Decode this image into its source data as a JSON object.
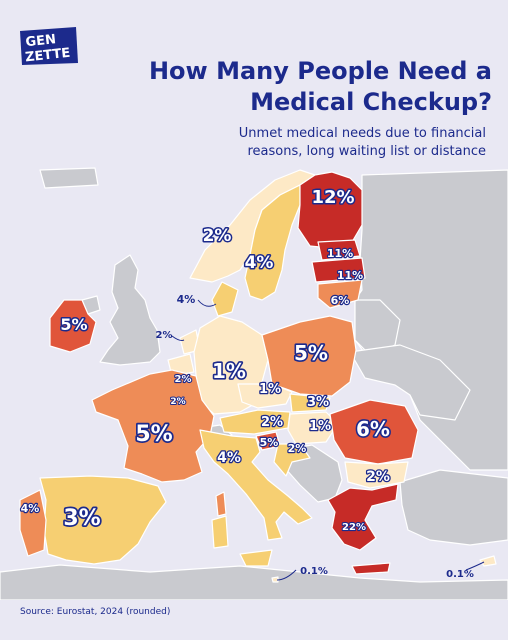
{
  "brand": {
    "line1": "GEN",
    "line2": "ZETTE"
  },
  "header": {
    "title_line1": "How Many People Need a",
    "title_line2": "Medical Checkup?",
    "subtitle_line1": "Unmet medical needs due to financial",
    "subtitle_line2": "reasons, long waiting list or distance"
  },
  "colors": {
    "navy": "#1c2a8c",
    "background": "#e9e8f3",
    "no_data": "#c9cacf",
    "level_lowest": "#fde9c6",
    "level_low": "#f6cf72",
    "level_mid": "#ee8c57",
    "level_high": "#e0553a",
    "level_highest": "#c62b27"
  },
  "regions": [
    {
      "name": "Finland",
      "label": "12%",
      "value": 12
    },
    {
      "name": "Estonia",
      "label": "11%",
      "value": 11
    },
    {
      "name": "Latvia",
      "label": "11%",
      "value": 11
    },
    {
      "name": "Lithuania",
      "label": "6%",
      "value": 6
    },
    {
      "name": "Norway",
      "label": "2%",
      "value": 2
    },
    {
      "name": "Sweden",
      "label": "4%",
      "value": 4
    },
    {
      "name": "Denmark",
      "label": "4%",
      "value": 4
    },
    {
      "name": "Ireland",
      "label": "5%",
      "value": 5
    },
    {
      "name": "Netherlands",
      "label": "2%",
      "value": 2
    },
    {
      "name": "Belgium",
      "label": "2%",
      "value": 2
    },
    {
      "name": "Luxembourg",
      "label": "2%",
      "value": 2
    },
    {
      "name": "Germany",
      "label": "1%",
      "value": 1
    },
    {
      "name": "Poland",
      "label": "5%",
      "value": 5
    },
    {
      "name": "Czechia",
      "label": "1%",
      "value": 1
    },
    {
      "name": "Slovakia",
      "label": "3%",
      "value": 3
    },
    {
      "name": "Austria",
      "label": "2%",
      "value": 2
    },
    {
      "name": "Hungary",
      "label": "1%",
      "value": 1
    },
    {
      "name": "Slovenia",
      "label": "5%",
      "value": 5
    },
    {
      "name": "Croatia",
      "label": "2%",
      "value": 2
    },
    {
      "name": "Romania",
      "label": "6%",
      "value": 6
    },
    {
      "name": "Bulgaria",
      "label": "2%",
      "value": 2
    },
    {
      "name": "Greece",
      "label": "22%",
      "value": 22
    },
    {
      "name": "France",
      "label": "5%",
      "value": 5
    },
    {
      "name": "Italy",
      "label": "4%",
      "value": 4
    },
    {
      "name": "Spain",
      "label": "3%",
      "value": 3
    },
    {
      "name": "Portugal",
      "label": "4%",
      "value": 4
    },
    {
      "name": "Malta",
      "label": "0.1%",
      "value": 0.1
    },
    {
      "name": "Cyprus",
      "label": "0.1%",
      "value": 0.1
    }
  ],
  "footer": {
    "source": "Source: Eurostat, 2024 (rounded)"
  }
}
